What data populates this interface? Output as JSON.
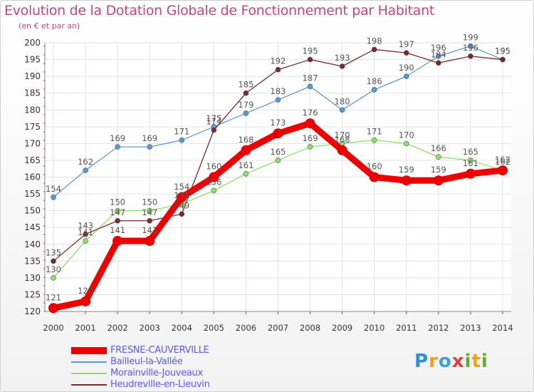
{
  "title": "Evolution de la Dotation Globale de Fonctionnement par Habitant",
  "subtitle": "(en € et par an)",
  "logo_text": "Proxiti",
  "chart_data": {
    "type": "line",
    "title": "Evolution de la Dotation Globale de Fonctionnement par Habitant",
    "subtitle": "(en € et par an)",
    "xlabel": "",
    "ylabel": "",
    "x": [
      "2000",
      "2001",
      "2002",
      "2003",
      "2004",
      "2005",
      "2006",
      "2007",
      "2008",
      "2009",
      "2010",
      "2011",
      "2012",
      "2013",
      "2014"
    ],
    "ylim": [
      120,
      200
    ],
    "yticks": [
      120,
      125,
      130,
      135,
      140,
      145,
      150,
      155,
      160,
      165,
      170,
      175,
      180,
      185,
      190,
      195,
      200
    ],
    "grid": true,
    "series": [
      {
        "name": "FRESNE-CAUVERVILLE",
        "color": "#ee0000",
        "values": [
          121,
          123,
          141,
          141,
          154,
          160,
          168,
          173,
          176,
          168,
          160,
          159,
          159,
          161,
          162
        ]
      },
      {
        "name": "Bailleul-la-Vallée",
        "color": "#5b9bd5",
        "values": [
          154,
          162,
          169,
          169,
          171,
          175,
          179,
          183,
          187,
          180,
          186,
          190,
          196,
          199,
          195
        ]
      },
      {
        "name": "Morainville-Jouveaux",
        "color": "#8fe06a",
        "values": [
          130,
          141,
          150,
          150,
          152,
          156,
          161,
          165,
          169,
          170,
          171,
          170,
          166,
          165,
          162
        ]
      },
      {
        "name": "Heudreville-en-Lieuvin",
        "color": "#7a2a2a",
        "values": [
          135,
          143,
          147,
          147,
          149,
          174,
          185,
          192,
          195,
          193,
          198,
          197,
          194,
          196,
          195
        ]
      }
    ],
    "legend_position": "bottom-left"
  }
}
